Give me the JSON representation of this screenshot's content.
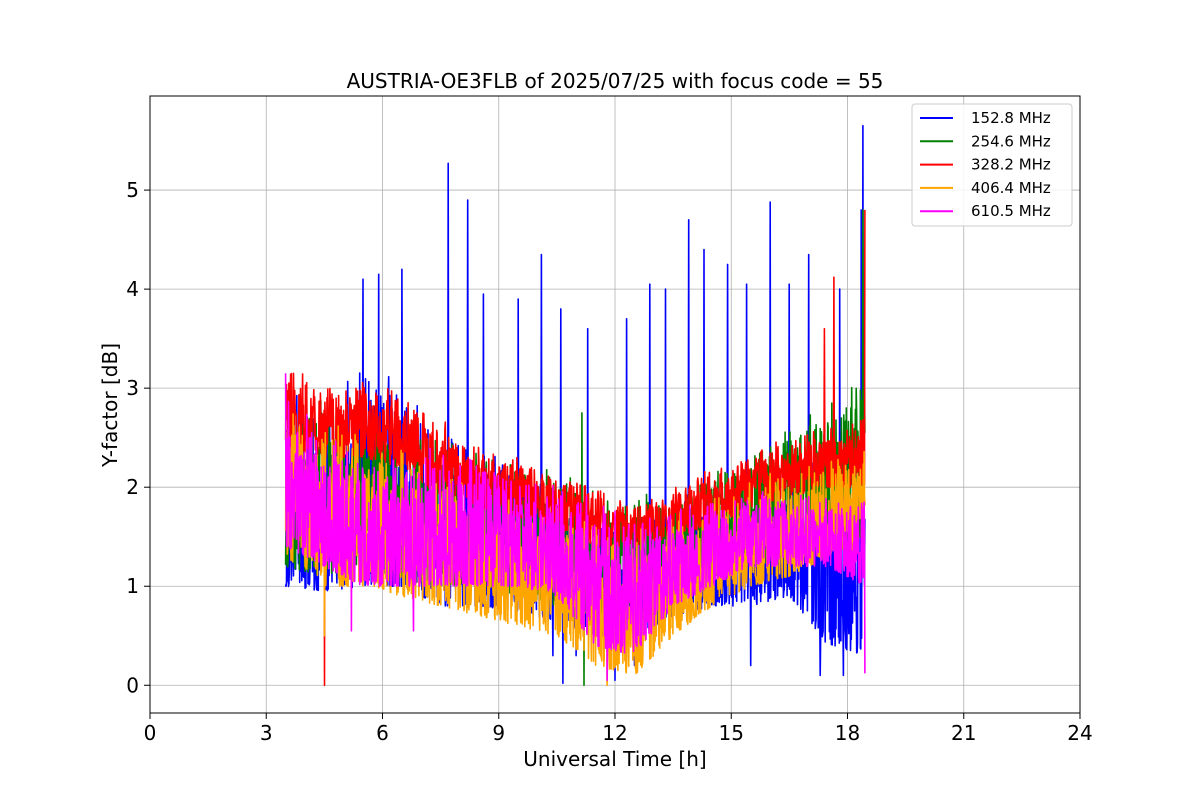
{
  "chart_data": {
    "type": "line",
    "title": "AUSTRIA-OE3FLB of 2025/07/25 with focus code = 55",
    "xlabel": "Universal Time [h]",
    "ylabel": "Y-factor [dB]",
    "xlim": [
      0,
      24
    ],
    "ylim": [
      -0.28,
      5.95
    ],
    "xticks": [
      0,
      3,
      6,
      9,
      12,
      15,
      18,
      21,
      24
    ],
    "xtick_labels": [
      "0",
      "3",
      "6",
      "9",
      "12",
      "15",
      "18",
      "21",
      "24"
    ],
    "yticks": [
      0,
      1,
      2,
      3,
      4,
      5
    ],
    "ytick_labels": [
      "0",
      "1",
      "2",
      "3",
      "4",
      "5"
    ],
    "grid": true,
    "legend_position": "top-right",
    "series": [
      {
        "name": "152.8 MHz",
        "color": "#0000ff",
        "band": [
          [
            3.5,
            1.0,
            3.0
          ],
          [
            4.5,
            0.95,
            2.9
          ],
          [
            5.5,
            1.0,
            3.2
          ],
          [
            6.5,
            1.0,
            3.1
          ],
          [
            7.5,
            0.8,
            2.6
          ],
          [
            8.5,
            0.8,
            2.4
          ],
          [
            9.5,
            0.75,
            2.3
          ],
          [
            10.5,
            0.65,
            2.1
          ],
          [
            11.5,
            0.5,
            1.7
          ],
          [
            12.5,
            0.5,
            1.6
          ],
          [
            13.5,
            0.7,
            1.9
          ],
          [
            14.5,
            0.8,
            2.0
          ],
          [
            15.5,
            0.8,
            2.1
          ],
          [
            16.5,
            0.9,
            2.2
          ],
          [
            17.5,
            0.4,
            2.4
          ],
          [
            18.45,
            0.3,
            2.6
          ]
        ],
        "spikes": [
          [
            5.5,
            4.1
          ],
          [
            5.9,
            4.15
          ],
          [
            6.5,
            4.2
          ],
          [
            7.7,
            5.27
          ],
          [
            8.2,
            4.9
          ],
          [
            8.6,
            3.95
          ],
          [
            9.5,
            3.9
          ],
          [
            10.1,
            4.35
          ],
          [
            10.6,
            3.8
          ],
          [
            11.3,
            3.6
          ],
          [
            12.3,
            3.7
          ],
          [
            12.9,
            4.05
          ],
          [
            13.3,
            4.0
          ],
          [
            13.9,
            4.7
          ],
          [
            14.3,
            4.4
          ],
          [
            14.9,
            4.25
          ],
          [
            15.4,
            4.05
          ],
          [
            16.0,
            4.88
          ],
          [
            16.5,
            4.05
          ],
          [
            17.0,
            4.35
          ],
          [
            17.8,
            4.0
          ],
          [
            18.35,
            4.8
          ],
          [
            18.4,
            5.65
          ]
        ],
        "dips": [
          [
            10.4,
            0.3
          ],
          [
            10.65,
            0.02
          ],
          [
            11.0,
            0.3
          ],
          [
            12.0,
            0.05
          ],
          [
            12.5,
            0.2
          ],
          [
            15.5,
            0.2
          ],
          [
            17.3,
            0.1
          ],
          [
            17.9,
            0.1
          ]
        ]
      },
      {
        "name": "254.6 MHz",
        "color": "#008000",
        "band": [
          [
            3.5,
            1.2,
            3.0
          ],
          [
            4.5,
            1.1,
            2.9
          ],
          [
            5.5,
            1.2,
            2.8
          ],
          [
            6.5,
            1.1,
            2.7
          ],
          [
            7.5,
            1.0,
            2.6
          ],
          [
            8.5,
            1.0,
            2.4
          ],
          [
            9.5,
            0.9,
            2.3
          ],
          [
            10.5,
            0.8,
            2.3
          ],
          [
            11.5,
            0.7,
            2.1
          ],
          [
            12.5,
            0.8,
            2.0
          ],
          [
            13.5,
            1.0,
            1.9
          ],
          [
            14.5,
            1.1,
            2.2
          ],
          [
            15.5,
            1.2,
            2.4
          ],
          [
            16.5,
            1.3,
            2.7
          ],
          [
            17.5,
            1.4,
            2.9
          ],
          [
            18.45,
            1.5,
            3.2
          ]
        ],
        "spikes": [
          [
            11.15,
            2.75
          ],
          [
            18.4,
            4.8
          ]
        ],
        "dips": [
          [
            11.2,
            0.0
          ]
        ]
      },
      {
        "name": "328.2 MHz",
        "color": "#ff0000",
        "band": [
          [
            3.5,
            2.4,
            3.2
          ],
          [
            4.5,
            2.3,
            3.1
          ],
          [
            5.5,
            2.3,
            3.1
          ],
          [
            6.5,
            2.2,
            3.0
          ],
          [
            7.5,
            1.9,
            2.7
          ],
          [
            8.5,
            1.8,
            2.4
          ],
          [
            9.5,
            1.7,
            2.3
          ],
          [
            10.5,
            1.6,
            2.2
          ],
          [
            11.5,
            1.4,
            2.0
          ],
          [
            12.5,
            1.4,
            1.8
          ],
          [
            13.5,
            1.5,
            2.0
          ],
          [
            14.5,
            1.6,
            2.2
          ],
          [
            15.5,
            1.8,
            2.4
          ],
          [
            16.5,
            1.9,
            2.5
          ],
          [
            17.5,
            2.0,
            2.6
          ],
          [
            18.45,
            2.0,
            2.7
          ]
        ],
        "spikes": [
          [
            17.65,
            4.12
          ],
          [
            17.4,
            3.6
          ],
          [
            18.45,
            4.8
          ]
        ],
        "dips": [
          [
            4.5,
            0.0
          ]
        ]
      },
      {
        "name": "406.4 MHz",
        "color": "#ffa500",
        "band": [
          [
            3.5,
            1.3,
            2.9
          ],
          [
            4.5,
            1.0,
            2.7
          ],
          [
            5.5,
            1.0,
            2.5
          ],
          [
            6.5,
            0.9,
            2.4
          ],
          [
            7.5,
            0.8,
            2.2
          ],
          [
            8.5,
            0.7,
            2.0
          ],
          [
            9.5,
            0.6,
            1.9
          ],
          [
            10.5,
            0.5,
            1.9
          ],
          [
            11.5,
            0.2,
            1.6
          ],
          [
            12.5,
            0.1,
            1.6
          ],
          [
            13.5,
            0.5,
            1.7
          ],
          [
            14.5,
            0.8,
            1.9
          ],
          [
            15.5,
            1.0,
            2.1
          ],
          [
            16.5,
            1.1,
            2.2
          ],
          [
            17.5,
            1.3,
            2.3
          ],
          [
            18.45,
            1.4,
            2.5
          ]
        ],
        "spikes": [],
        "dips": [
          [
            4.5,
            0.5
          ],
          [
            11.8,
            0.0
          ]
        ]
      },
      {
        "name": "610.5 MHz",
        "color": "#ff00ff",
        "band": [
          [
            3.5,
            1.4,
            3.1
          ],
          [
            4.5,
            1.2,
            2.6
          ],
          [
            5.5,
            1.0,
            2.4
          ],
          [
            6.5,
            1.0,
            2.3
          ],
          [
            7.5,
            1.0,
            2.5
          ],
          [
            8.5,
            1.0,
            2.3
          ],
          [
            9.5,
            1.0,
            2.2
          ],
          [
            10.5,
            0.9,
            2.1
          ],
          [
            11.5,
            0.4,
            1.9
          ],
          [
            12.5,
            0.3,
            1.8
          ],
          [
            13.5,
            0.8,
            1.8
          ],
          [
            14.5,
            1.0,
            1.9
          ],
          [
            15.5,
            1.2,
            2.0
          ],
          [
            16.5,
            1.2,
            2.0
          ],
          [
            17.5,
            1.2,
            1.9
          ],
          [
            18.45,
            1.0,
            2.0
          ]
        ],
        "spikes": [
          [
            3.5,
            3.15
          ]
        ],
        "dips": [
          [
            5.2,
            0.55
          ],
          [
            6.8,
            0.55
          ],
          [
            11.8,
            0.05
          ],
          [
            18.45,
            0.12
          ]
        ]
      }
    ]
  }
}
